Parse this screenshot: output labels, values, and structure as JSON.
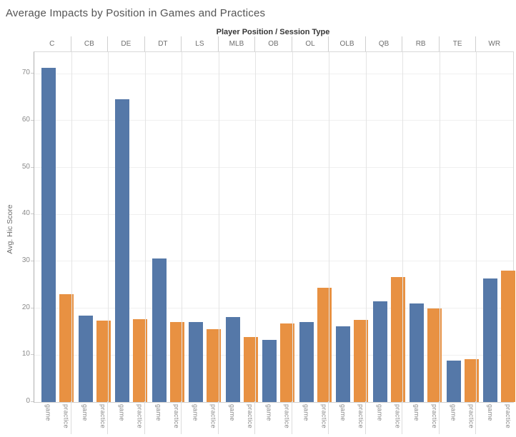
{
  "chart_data": {
    "type": "bar",
    "title": "Average Impacts by Position in Games and Practices",
    "column_header": "Player Position / Session Type",
    "ylabel": "Avg. Hic Score",
    "categories": [
      "C",
      "CB",
      "DE",
      "DT",
      "LS",
      "MLB",
      "OB",
      "OL",
      "OLB",
      "QB",
      "RB",
      "TE",
      "WR"
    ],
    "series": [
      {
        "name": "game",
        "color": "#5578a8",
        "values": [
          71.2,
          18.5,
          64.5,
          30.6,
          17.0,
          18.2,
          13.2,
          17.1,
          16.2,
          21.5,
          21.0,
          8.8,
          26.3
        ]
      },
      {
        "name": "practice",
        "color": "#e89142",
        "values": [
          23.0,
          17.4,
          17.6,
          17.1,
          15.5,
          13.9,
          16.7,
          24.4,
          17.5,
          26.7,
          20.0,
          9.1,
          28.0
        ]
      }
    ],
    "bar_sublabels": [
      "game",
      "practice"
    ],
    "yticks": [
      0,
      10,
      20,
      30,
      40,
      50,
      60,
      70
    ],
    "ylim": [
      0,
      74.6
    ],
    "grid": true,
    "legend": "none"
  }
}
